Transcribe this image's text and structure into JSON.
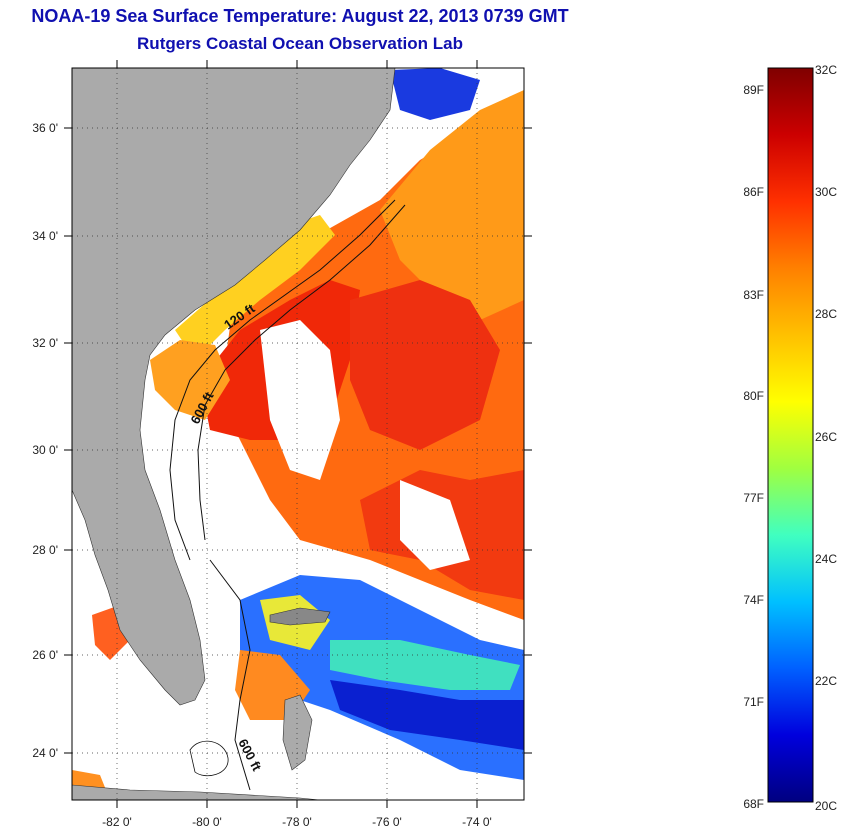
{
  "title": {
    "line1": "NOAA-19 Sea Surface Temperature:  August 22, 2013 0739 GMT",
    "line2": "Rutgers Coastal Ocean Observation Lab"
  },
  "map": {
    "lon_range": [
      -83,
      -73
    ],
    "lat_range": [
      23,
      37
    ],
    "x_ticks": [
      "-82 0'",
      "-80 0'",
      "-78 0'",
      "-76 0'",
      "-74 0'"
    ],
    "y_ticks": [
      "36 0'",
      "34 0'",
      "32 0'",
      "30 0'",
      "28 0'",
      "26 0'",
      "24 0'"
    ],
    "contour_labels": [
      "120 ft",
      "600 ft",
      "600 ft"
    ],
    "colors": {
      "land": "#aaaaaa",
      "cloud": "#ffffff"
    }
  },
  "colorbar": {
    "fahrenheit_labels": [
      "89F",
      "86F",
      "83F",
      "80F",
      "77F",
      "74F",
      "71F",
      "68F"
    ],
    "celsius_labels": [
      "32C",
      "30C",
      "28C",
      "26C",
      "24C",
      "22C",
      "20C"
    ],
    "range_c": [
      20,
      32
    ],
    "colormap": [
      "#7f0000",
      "#cc0000",
      "#ff3000",
      "#ff8000",
      "#ffc000",
      "#ffff00",
      "#a0ff40",
      "#40ffc0",
      "#00c0ff",
      "#0060ff",
      "#0000dd",
      "#000080"
    ]
  }
}
